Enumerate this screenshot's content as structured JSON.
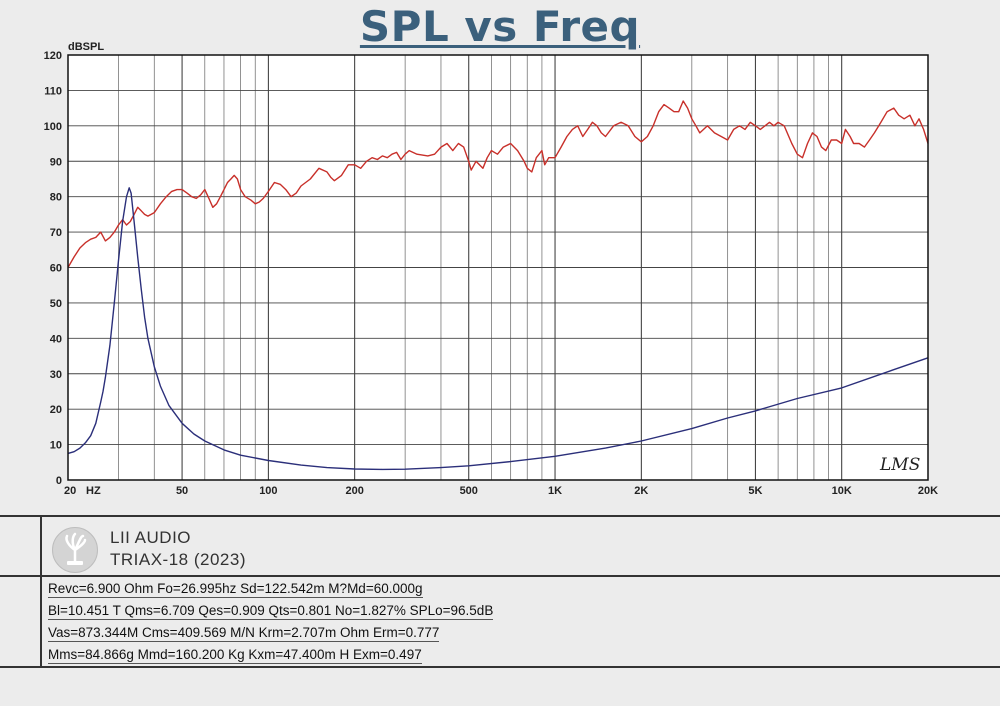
{
  "title": "SPL vs Freq",
  "chart_data": {
    "type": "line",
    "ylabel": "dBSPL",
    "xscale": "log",
    "xlim": [
      20,
      20000
    ],
    "ylim": [
      0,
      120
    ],
    "grid": true,
    "yticks": [
      0,
      10,
      20,
      30,
      40,
      50,
      60,
      70,
      80,
      90,
      100,
      110,
      120
    ],
    "xticks": [
      {
        "value": 20,
        "label": "20"
      },
      {
        "value": 50,
        "label": "50"
      },
      {
        "value": 100,
        "label": "100"
      },
      {
        "value": 200,
        "label": "200"
      },
      {
        "value": 500,
        "label": "500"
      },
      {
        "value": 1000,
        "label": "1K"
      },
      {
        "value": 2000,
        "label": "2K"
      },
      {
        "value": 5000,
        "label": "5K"
      },
      {
        "value": 10000,
        "label": "10K"
      },
      {
        "value": 20000,
        "label": "20K"
      }
    ],
    "xunit_label": "HZ",
    "annotation": "LMS",
    "series": [
      {
        "color": "#c8302a",
        "points": [
          [
            20,
            60
          ],
          [
            21,
            63
          ],
          [
            22,
            65.5
          ],
          [
            23,
            67
          ],
          [
            24,
            68
          ],
          [
            25,
            68.5
          ],
          [
            26,
            70
          ],
          [
            27,
            67.5
          ],
          [
            28,
            68.5
          ],
          [
            29,
            70
          ],
          [
            30,
            72
          ],
          [
            31,
            73.5
          ],
          [
            32,
            72
          ],
          [
            33,
            73
          ],
          [
            34,
            75
          ],
          [
            35,
            77
          ],
          [
            36,
            76
          ],
          [
            37,
            75
          ],
          [
            38,
            74.5
          ],
          [
            40,
            75.5
          ],
          [
            42,
            78
          ],
          [
            44,
            80
          ],
          [
            46,
            81.5
          ],
          [
            48,
            82
          ],
          [
            50,
            82
          ],
          [
            52,
            81
          ],
          [
            54,
            80
          ],
          [
            56,
            79.5
          ],
          [
            58,
            80.5
          ],
          [
            60,
            82
          ],
          [
            62,
            79.5
          ],
          [
            64,
            77
          ],
          [
            66,
            78
          ],
          [
            68,
            80
          ],
          [
            70,
            82
          ],
          [
            72,
            84
          ],
          [
            74,
            85
          ],
          [
            76,
            86
          ],
          [
            78,
            85
          ],
          [
            80,
            82
          ],
          [
            83,
            80
          ],
          [
            87,
            79
          ],
          [
            90,
            78
          ],
          [
            93,
            78.5
          ],
          [
            96,
            79.5
          ],
          [
            100,
            81.5
          ],
          [
            105,
            84
          ],
          [
            110,
            83.5
          ],
          [
            115,
            82
          ],
          [
            120,
            80
          ],
          [
            125,
            81
          ],
          [
            130,
            83
          ],
          [
            140,
            85
          ],
          [
            150,
            88
          ],
          [
            160,
            87
          ],
          [
            165,
            85.5
          ],
          [
            170,
            84.5
          ],
          [
            180,
            86
          ],
          [
            190,
            89
          ],
          [
            200,
            89
          ],
          [
            210,
            88
          ],
          [
            220,
            90
          ],
          [
            230,
            91
          ],
          [
            240,
            90.5
          ],
          [
            250,
            91.5
          ],
          [
            260,
            91
          ],
          [
            270,
            92
          ],
          [
            280,
            92.5
          ],
          [
            290,
            90.5
          ],
          [
            300,
            92
          ],
          [
            310,
            93
          ],
          [
            330,
            92
          ],
          [
            360,
            91.5
          ],
          [
            380,
            92
          ],
          [
            400,
            94
          ],
          [
            420,
            95
          ],
          [
            440,
            93
          ],
          [
            460,
            95
          ],
          [
            480,
            94
          ],
          [
            500,
            90
          ],
          [
            510,
            87.5
          ],
          [
            530,
            90
          ],
          [
            560,
            88
          ],
          [
            580,
            91
          ],
          [
            600,
            93
          ],
          [
            630,
            92
          ],
          [
            660,
            94
          ],
          [
            700,
            95
          ],
          [
            740,
            93
          ],
          [
            780,
            90
          ],
          [
            800,
            88
          ],
          [
            830,
            87
          ],
          [
            860,
            91
          ],
          [
            900,
            93
          ],
          [
            920,
            89
          ],
          [
            950,
            91
          ],
          [
            1000,
            91
          ],
          [
            1050,
            94
          ],
          [
            1100,
            97
          ],
          [
            1150,
            99
          ],
          [
            1200,
            100
          ],
          [
            1250,
            97
          ],
          [
            1300,
            99
          ],
          [
            1350,
            101
          ],
          [
            1400,
            100
          ],
          [
            1450,
            98
          ],
          [
            1500,
            97
          ],
          [
            1600,
            100
          ],
          [
            1700,
            101
          ],
          [
            1800,
            100
          ],
          [
            1900,
            97
          ],
          [
            2000,
            95.5
          ],
          [
            2100,
            97
          ],
          [
            2200,
            100
          ],
          [
            2300,
            104
          ],
          [
            2400,
            106
          ],
          [
            2500,
            105
          ],
          [
            2600,
            104
          ],
          [
            2700,
            104
          ],
          [
            2800,
            107
          ],
          [
            2900,
            105
          ],
          [
            3000,
            102
          ],
          [
            3100,
            100
          ],
          [
            3200,
            98
          ],
          [
            3400,
            100
          ],
          [
            3600,
            98
          ],
          [
            3800,
            97
          ],
          [
            4000,
            96
          ],
          [
            4200,
            99
          ],
          [
            4400,
            100
          ],
          [
            4600,
            99
          ],
          [
            4800,
            101
          ],
          [
            5000,
            100
          ],
          [
            5200,
            99
          ],
          [
            5400,
            100
          ],
          [
            5600,
            101
          ],
          [
            5800,
            100
          ],
          [
            6000,
            101
          ],
          [
            6300,
            100
          ],
          [
            6700,
            95
          ],
          [
            7000,
            92
          ],
          [
            7300,
            91
          ],
          [
            7600,
            95
          ],
          [
            7900,
            98
          ],
          [
            8200,
            97
          ],
          [
            8500,
            94
          ],
          [
            8800,
            93
          ],
          [
            9200,
            96
          ],
          [
            9600,
            96
          ],
          [
            10000,
            95
          ],
          [
            10300,
            99
          ],
          [
            10700,
            97
          ],
          [
            11000,
            95
          ],
          [
            11500,
            95
          ],
          [
            12000,
            94
          ],
          [
            12500,
            96
          ],
          [
            13000,
            98
          ],
          [
            13700,
            101
          ],
          [
            14400,
            104
          ],
          [
            15200,
            105
          ],
          [
            15800,
            103
          ],
          [
            16500,
            102
          ],
          [
            17300,
            103
          ],
          [
            18000,
            100
          ],
          [
            18600,
            102
          ],
          [
            19300,
            99
          ],
          [
            20000,
            95
          ]
        ]
      },
      {
        "color": "#2b2f7a",
        "points": [
          [
            20,
            7.5
          ],
          [
            21,
            8
          ],
          [
            22,
            9
          ],
          [
            23,
            10.5
          ],
          [
            24,
            12.5
          ],
          [
            25,
            16
          ],
          [
            26,
            22
          ],
          [
            26.5,
            25
          ],
          [
            27,
            29
          ],
          [
            28,
            38
          ],
          [
            29,
            50
          ],
          [
            30,
            62
          ],
          [
            31,
            73
          ],
          [
            32,
            80
          ],
          [
            32.7,
            82.5
          ],
          [
            33.2,
            81
          ],
          [
            34,
            73
          ],
          [
            35,
            63
          ],
          [
            36,
            54
          ],
          [
            37,
            46
          ],
          [
            38,
            40
          ],
          [
            40,
            32
          ],
          [
            42,
            26.5
          ],
          [
            45,
            21
          ],
          [
            50,
            16
          ],
          [
            55,
            13
          ],
          [
            60,
            11
          ],
          [
            70,
            8.5
          ],
          [
            80,
            7
          ],
          [
            100,
            5.5
          ],
          [
            130,
            4.2
          ],
          [
            160,
            3.5
          ],
          [
            200,
            3.1
          ],
          [
            250,
            3
          ],
          [
            300,
            3.05
          ],
          [
            400,
            3.5
          ],
          [
            500,
            4
          ],
          [
            700,
            5.2
          ],
          [
            1000,
            6.7
          ],
          [
            1500,
            9
          ],
          [
            2000,
            11
          ],
          [
            3000,
            14.5
          ],
          [
            4000,
            17.5
          ],
          [
            5000,
            19.5
          ],
          [
            7000,
            23
          ],
          [
            10000,
            26
          ],
          [
            15000,
            31
          ],
          [
            20000,
            34.5
          ]
        ]
      }
    ]
  },
  "info": {
    "brand": "LII AUDIO",
    "model": "TRIAX-18 (2023)",
    "params": [
      "Revc=6.900 Ohm Fo=26.995hz Sd=122.542m M?Md=60.000g",
      "Bl=10.451 T Qms=6.709 Qes=0.909 Qts=0.801 No=1.827% SPLo=96.5dB",
      "Vas=873.344M Cms=409.569 M/N Krm=2.707m Ohm Erm=0.777",
      "Mms=84.866g Mmd=160.200 Kg Kxm=47.400m H Exm=0.497"
    ]
  }
}
